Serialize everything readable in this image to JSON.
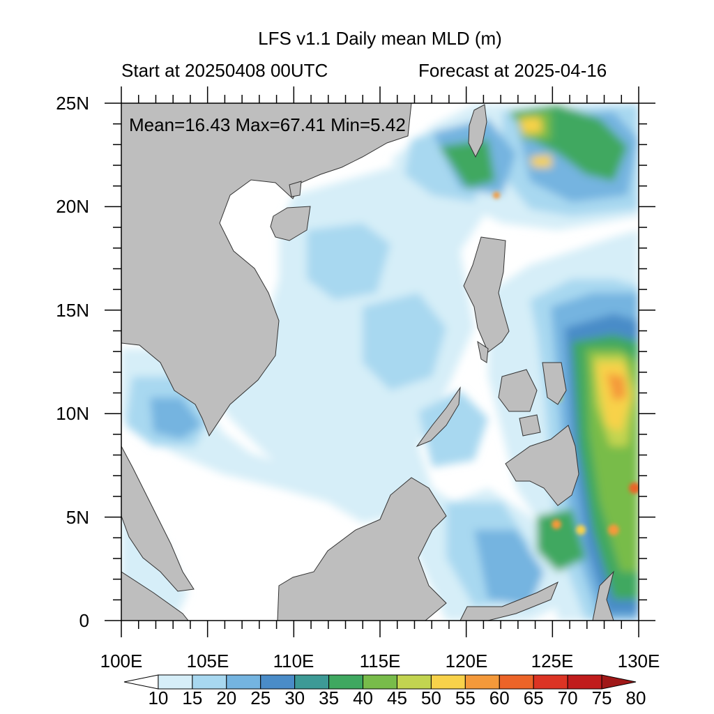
{
  "title": "LFS v1.1 Daily mean MLD (m)",
  "start_label": "Start at 20250408 00UTC",
  "forecast_label": "Forecast at 2025-04-16",
  "stats": {
    "text": "Mean=16.43  Max=67.41  Min=5.42",
    "mean": 16.43,
    "max": 67.41,
    "min": 5.42
  },
  "map": {
    "lon_range": [
      100,
      130
    ],
    "lat_range": [
      0,
      25
    ],
    "lon_ticks": [
      "100E",
      "105E",
      "110E",
      "115E",
      "120E",
      "125E",
      "130E"
    ],
    "lat_ticks": [
      "0",
      "5N",
      "10N",
      "15N",
      "20N",
      "25N"
    ],
    "land_color": "#bebebe",
    "ocean_base_color": "#ffffff"
  },
  "colorbar": {
    "levels": [
      "10",
      "15",
      "20",
      "25",
      "30",
      "35",
      "40",
      "45",
      "50",
      "55",
      "60",
      "65",
      "70",
      "75",
      "80"
    ],
    "colors": [
      "#ffffff",
      "#d6eef8",
      "#a8d8f0",
      "#74b4e0",
      "#4a8cc8",
      "#3d9a96",
      "#3fa860",
      "#78bc4a",
      "#c2d450",
      "#f8d24a",
      "#f4993a",
      "#ec6428",
      "#dc3424",
      "#c01c1c",
      "#a01818"
    ]
  }
}
